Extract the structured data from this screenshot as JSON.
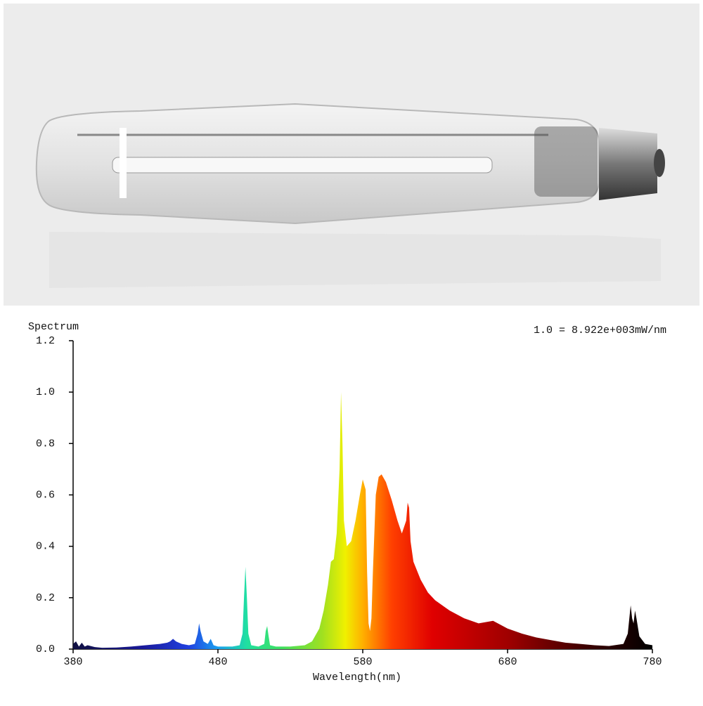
{
  "chart_data": {
    "type": "area",
    "ylabel": "Spectrum",
    "annotation": "1.0 = 8.922e+003mW/nm",
    "xlabel": "Wavelength(nm)",
    "x": [
      380,
      382,
      384,
      386,
      388,
      390,
      395,
      400,
      410,
      420,
      430,
      440,
      445,
      447,
      449,
      451,
      455,
      460,
      464,
      466,
      467,
      468,
      470,
      473,
      475,
      477,
      480,
      490,
      495,
      497,
      498,
      499,
      500,
      501,
      503,
      508,
      512,
      513,
      514,
      515,
      516,
      520,
      530,
      540,
      545,
      550,
      553,
      556,
      558,
      560,
      562,
      564,
      565,
      566,
      567,
      569,
      572,
      575,
      578,
      580,
      582,
      583,
      584,
      585,
      586,
      587,
      589,
      591,
      593,
      596,
      600,
      604,
      607,
      610,
      611,
      612,
      613,
      615,
      620,
      625,
      630,
      640,
      650,
      660,
      670,
      680,
      690,
      700,
      710,
      720,
      730,
      740,
      750,
      760,
      763,
      765,
      766,
      767,
      768,
      769,
      771,
      775,
      780
    ],
    "y": [
      0.02,
      0.03,
      0.01,
      0.025,
      0.01,
      0.015,
      0.008,
      0.005,
      0.006,
      0.01,
      0.015,
      0.02,
      0.025,
      0.03,
      0.04,
      0.03,
      0.02,
      0.015,
      0.02,
      0.06,
      0.1,
      0.07,
      0.03,
      0.02,
      0.04,
      0.015,
      0.01,
      0.01,
      0.015,
      0.06,
      0.2,
      0.32,
      0.2,
      0.06,
      0.015,
      0.01,
      0.02,
      0.07,
      0.09,
      0.05,
      0.015,
      0.01,
      0.01,
      0.015,
      0.03,
      0.08,
      0.15,
      0.25,
      0.34,
      0.35,
      0.45,
      0.7,
      1.0,
      0.8,
      0.5,
      0.4,
      0.42,
      0.5,
      0.6,
      0.66,
      0.62,
      0.3,
      0.1,
      0.07,
      0.12,
      0.3,
      0.6,
      0.67,
      0.68,
      0.65,
      0.58,
      0.5,
      0.45,
      0.5,
      0.57,
      0.55,
      0.42,
      0.34,
      0.27,
      0.22,
      0.19,
      0.15,
      0.12,
      0.1,
      0.11,
      0.08,
      0.06,
      0.045,
      0.035,
      0.025,
      0.02,
      0.015,
      0.012,
      0.02,
      0.06,
      0.17,
      0.12,
      0.1,
      0.15,
      0.12,
      0.05,
      0.02,
      0.015
    ],
    "xlim": [
      380,
      780
    ],
    "xticks": [
      380,
      480,
      580,
      680,
      780
    ],
    "ylim": [
      0,
      1.2
    ],
    "yticks": [
      {
        "value": 0,
        "label": "0.0"
      },
      {
        "value": 0.2,
        "label": "0.2"
      },
      {
        "value": 0.4,
        "label": "0.4"
      },
      {
        "value": 0.6,
        "label": "0.6"
      },
      {
        "value": 0.8,
        "label": "0.8"
      },
      {
        "value": 1,
        "label": "1.0"
      },
      {
        "value": 1.2,
        "label": "1.2"
      }
    ]
  }
}
